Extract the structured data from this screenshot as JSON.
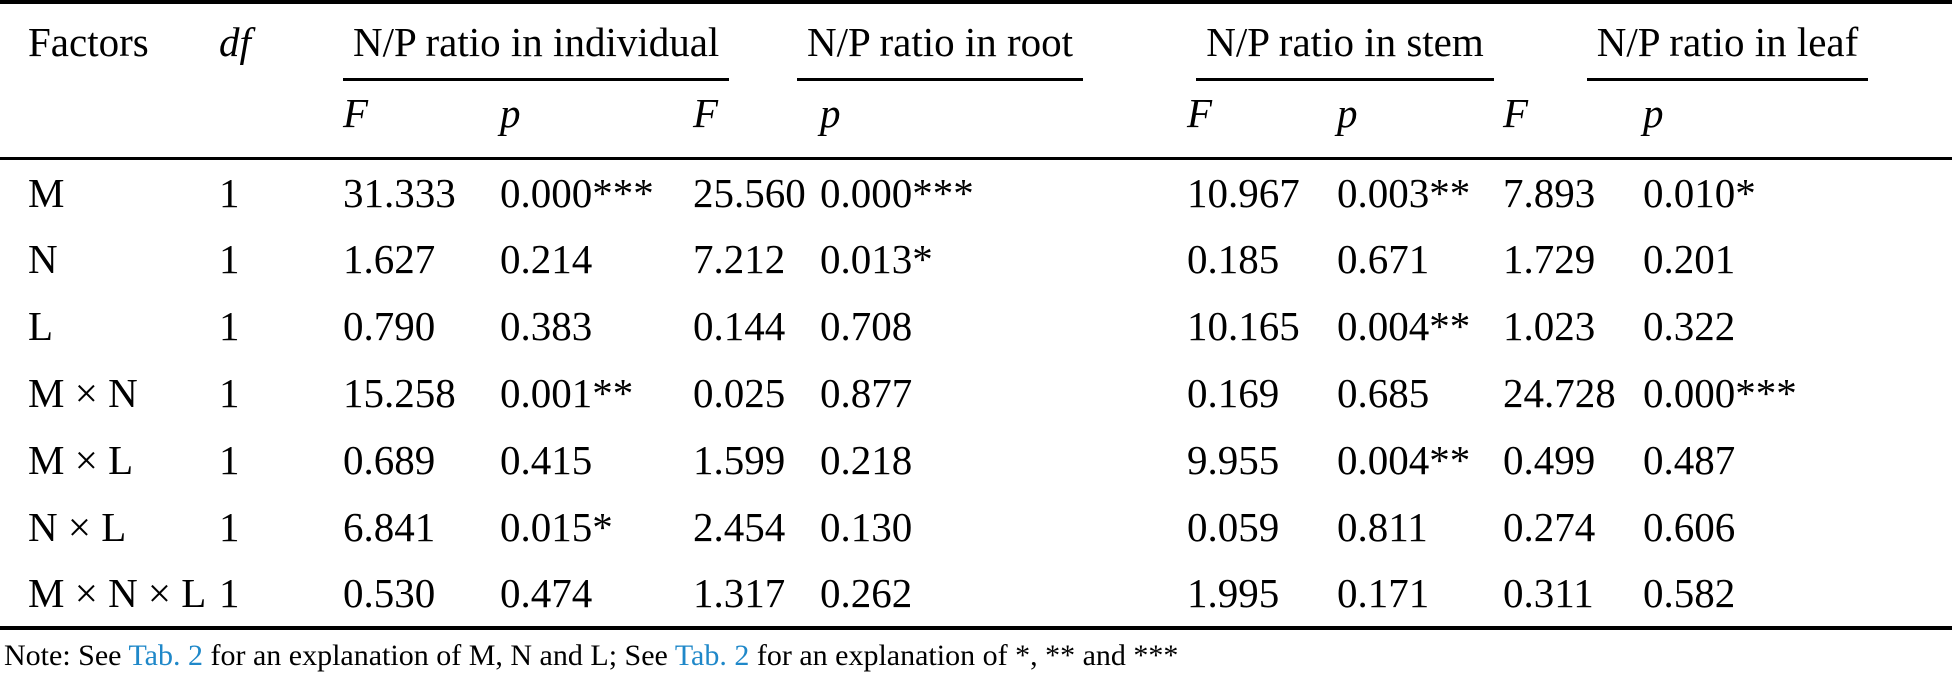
{
  "table": {
    "headers": {
      "factors": "Factors",
      "df": "df",
      "sub_f": "F",
      "sub_p": "p",
      "groups": [
        {
          "label": "N/P ratio in individual"
        },
        {
          "label": "N/P ratio in root"
        },
        {
          "label": "N/P ratio in stem"
        },
        {
          "label": "N/P ratio in leaf"
        }
      ]
    },
    "rows": [
      {
        "factor": "M",
        "df": "1",
        "values": [
          "31.333",
          "0.000***",
          "25.560",
          "0.000***",
          "10.967",
          "0.003**",
          "7.893",
          "0.010*"
        ]
      },
      {
        "factor": "N",
        "df": "1",
        "values": [
          "1.627",
          "0.214",
          "7.212",
          "0.013*",
          "0.185",
          "0.671",
          "1.729",
          "0.201"
        ]
      },
      {
        "factor": "L",
        "df": "1",
        "values": [
          "0.790",
          "0.383",
          "0.144",
          "0.708",
          "10.165",
          "0.004**",
          "1.023",
          "0.322"
        ]
      },
      {
        "factor": "M × N",
        "df": "1",
        "values": [
          "15.258",
          "0.001**",
          "0.025",
          "0.877",
          "0.169",
          "0.685",
          "24.728",
          "0.000***"
        ]
      },
      {
        "factor": "M × L",
        "df": "1",
        "values": [
          "0.689",
          "0.415",
          "1.599",
          "0.218",
          "9.955",
          "0.004**",
          "0.499",
          "0.487"
        ]
      },
      {
        "factor": "N × L",
        "df": "1",
        "values": [
          "6.841",
          "0.015*",
          "2.454",
          "0.130",
          "0.059",
          "0.811",
          "0.274",
          "0.606"
        ]
      },
      {
        "factor": "M × N × L",
        "df": "1",
        "values": [
          "0.530",
          "0.474",
          "1.317",
          "0.262",
          "1.995",
          "0.171",
          "0.311",
          "0.582"
        ]
      }
    ]
  },
  "note": {
    "prefix": "Note: See ",
    "link1": "Tab. 2",
    "segment2": " for an explanation of M, N and L; See ",
    "link2": "Tab. 2",
    "suffix": " for an explanation of *, ** and ***"
  },
  "colors": {
    "link": "#1F88C9",
    "text": "#000000",
    "rule": "#000000",
    "background": "#FFFFFF"
  }
}
